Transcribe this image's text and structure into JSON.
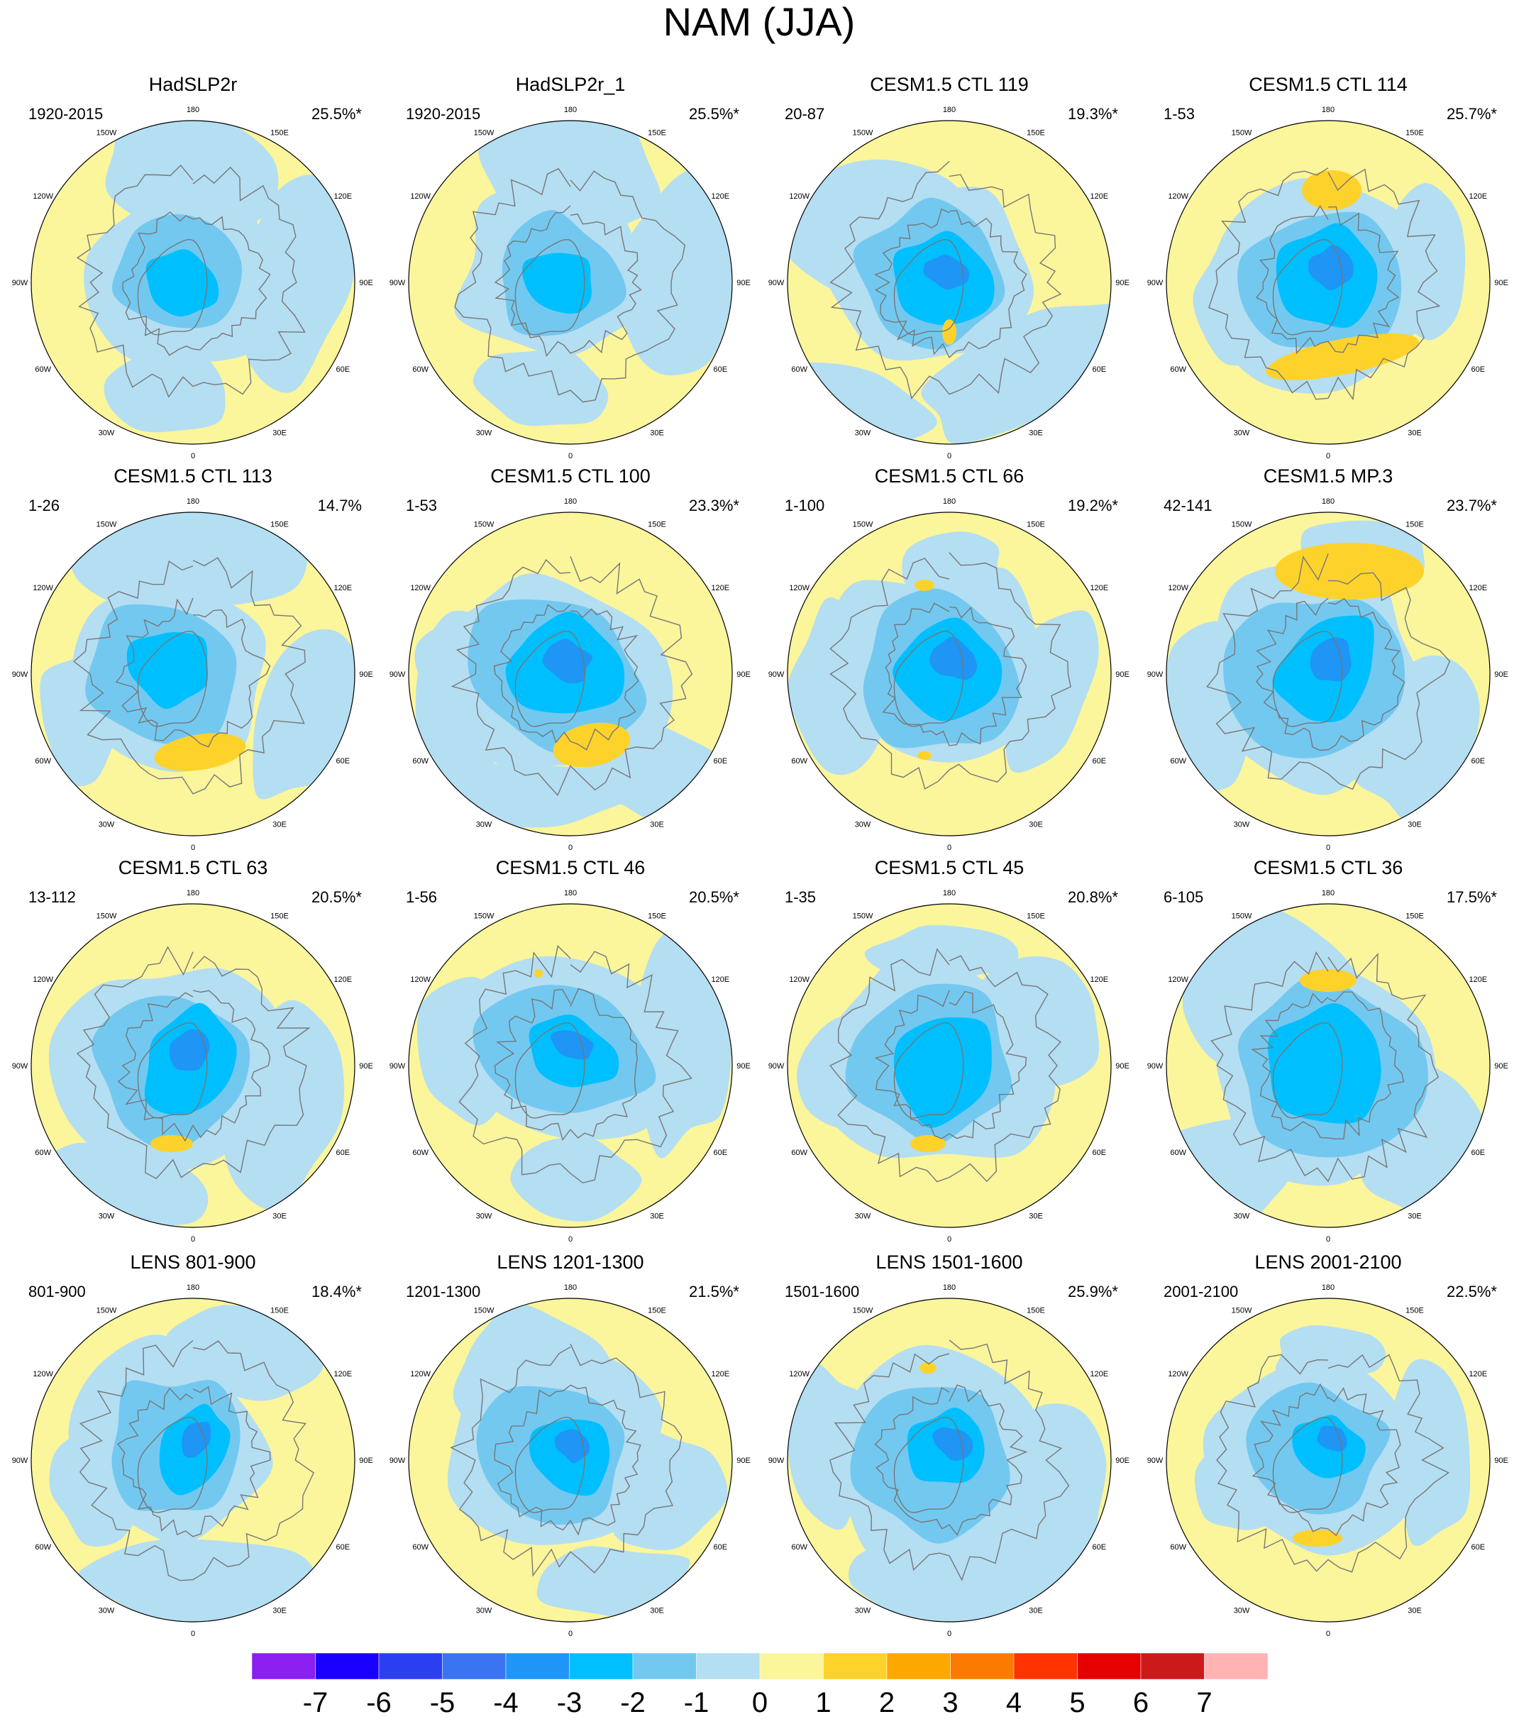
{
  "figure": {
    "title": "NAM (JJA)"
  },
  "longitude_labels": [
    "180",
    "150E",
    "120E",
    "90E",
    "60E",
    "30E",
    "0",
    "30W",
    "60W",
    "90W",
    "120W",
    "150W"
  ],
  "panels": [
    {
      "title": "HadSLP2r",
      "period": "1920-2015",
      "variance": "25.5%*"
    },
    {
      "title": "HadSLP2r_1",
      "period": "1920-2015",
      "variance": "25.5%*"
    },
    {
      "title": "CESM1.5 CTL 119",
      "period": "20-87",
      "variance": "19.3%*"
    },
    {
      "title": "CESM1.5 CTL 114",
      "period": "1-53",
      "variance": "25.7%*"
    },
    {
      "title": "CESM1.5 CTL 113",
      "period": "1-26",
      "variance": "14.7%"
    },
    {
      "title": "CESM1.5 CTL 100",
      "period": "1-53",
      "variance": "23.3%*"
    },
    {
      "title": "CESM1.5 CTL 66",
      "period": "1-100",
      "variance": "19.2%*"
    },
    {
      "title": "CESM1.5 MP.3",
      "period": "42-141",
      "variance": "23.7%*"
    },
    {
      "title": "CESM1.5 CTL 63",
      "period": "13-112",
      "variance": "20.5%*"
    },
    {
      "title": "CESM1.5 CTL 46",
      "period": "1-56",
      "variance": "20.5%*"
    },
    {
      "title": "CESM1.5 CTL 45",
      "period": "1-35",
      "variance": "20.8%*"
    },
    {
      "title": "CESM1.5 CTL 36",
      "period": "6-105",
      "variance": "17.5%*"
    },
    {
      "title": "LENS 801-900",
      "period": "801-900",
      "variance": "18.4%*"
    },
    {
      "title": "LENS 1201-1300",
      "period": "1201-1300",
      "variance": "21.5%*"
    },
    {
      "title": "LENS 1501-1600",
      "period": "1501-1600",
      "variance": "25.9%*"
    },
    {
      "title": "LENS 2001-2100",
      "period": "2001-2100",
      "variance": "22.5%*"
    }
  ],
  "colorbar": {
    "labels": [
      "-7",
      "-6",
      "-5",
      "-4",
      "-3",
      "-2",
      "-1",
      "0",
      "1",
      "2",
      "3",
      "4",
      "5",
      "6",
      "7"
    ],
    "colors": [
      "#8a1ff0",
      "#1a00ff",
      "#2a3ff0",
      "#3a74f0",
      "#1f95f5",
      "#00bfff",
      "#73c8f0",
      "#b4def2",
      "#fbf59c",
      "#fdd22b",
      "#fca800",
      "#fb7b00",
      "#ff3300",
      "#e60000",
      "#cc1a1a",
      "#ffb3b3"
    ]
  },
  "fill_colors": {
    "ocean_background": "#fbf59c",
    "negative_1": "#b4def2",
    "negative_2": "#73c8f0",
    "negative_3": "#00bfff",
    "negative_4": "#1f95f5",
    "positive_1": "#fdd22b"
  }
}
